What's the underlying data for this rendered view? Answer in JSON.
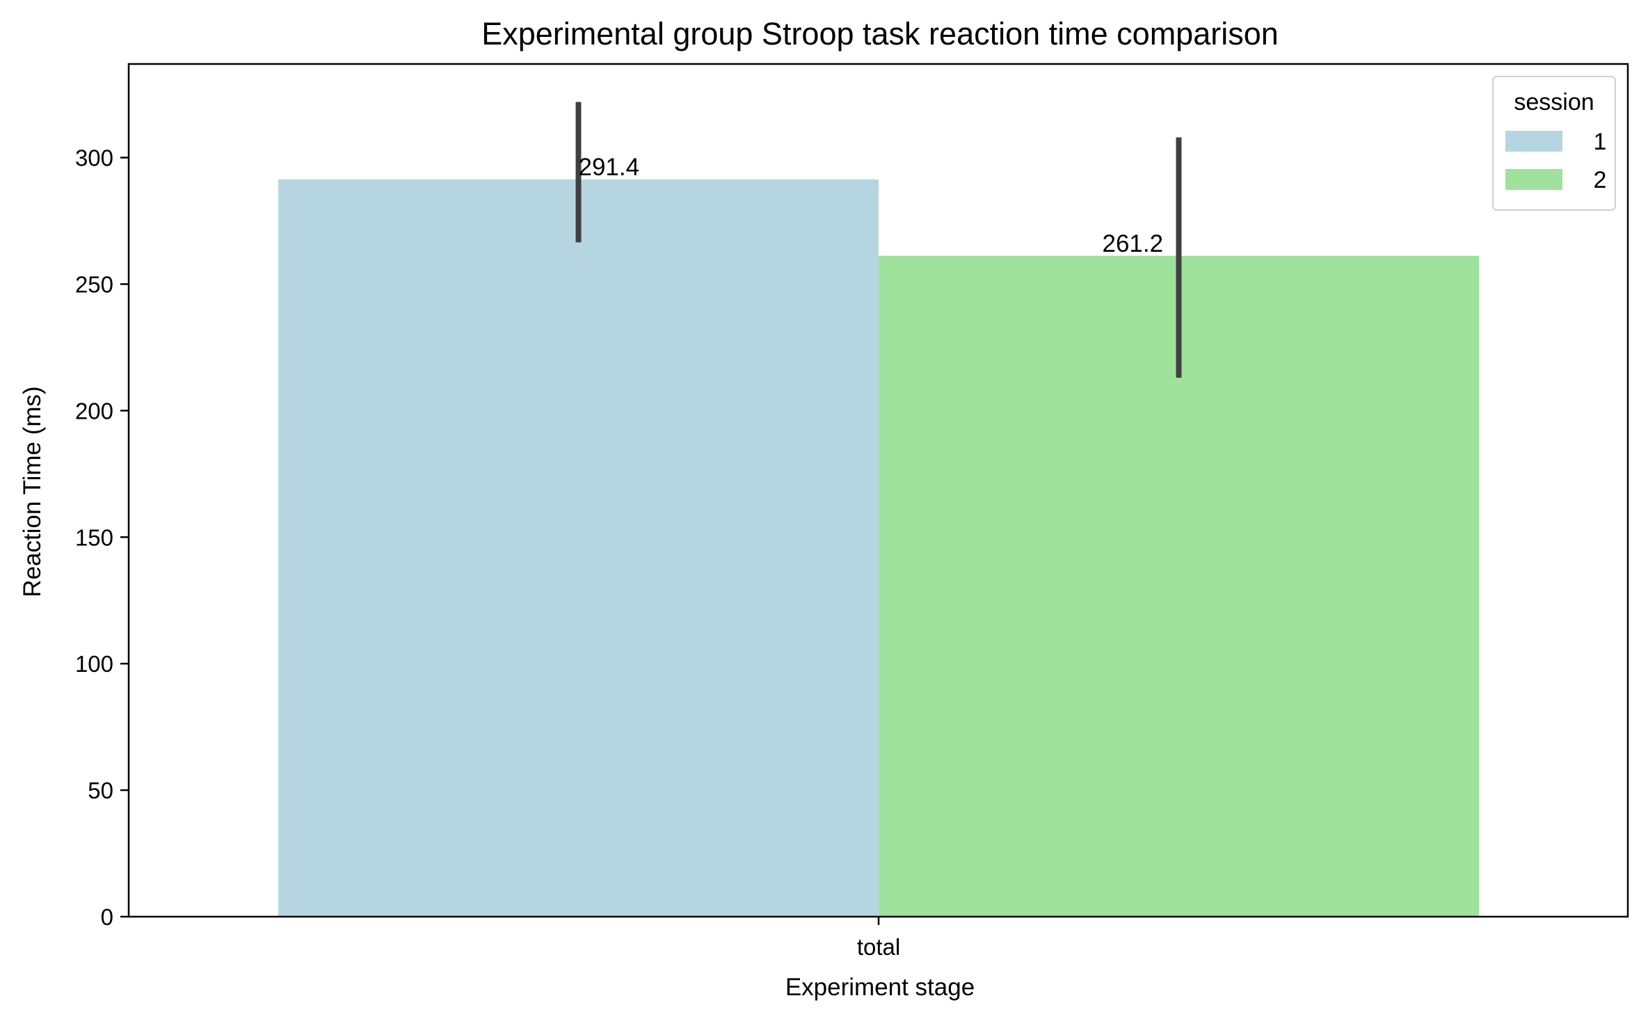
{
  "chart_data": {
    "type": "bar",
    "title": "Experimental group Stroop task reaction time comparison",
    "xlabel": "Experiment stage",
    "ylabel": "Reaction Time (ms)",
    "categories": [
      "total"
    ],
    "ylim": [
      0,
      337
    ],
    "yticks": [
      0,
      50,
      100,
      150,
      200,
      250,
      300
    ],
    "grid": false,
    "legend": {
      "title": "session",
      "placement": "top-right"
    },
    "series": [
      {
        "name": "1",
        "color": "#b5d6e0",
        "values": [
          291.4
        ],
        "error_low": [
          266.5
        ],
        "error_high": [
          322.0
        ],
        "value_labels": [
          "291.4"
        ]
      },
      {
        "name": "2",
        "color": "#9ee29b",
        "values": [
          261.2
        ],
        "error_low": [
          213.0
        ],
        "error_high": [
          308.0
        ],
        "value_labels": [
          "261.2"
        ]
      }
    ],
    "errorbar_color": "#404040"
  }
}
